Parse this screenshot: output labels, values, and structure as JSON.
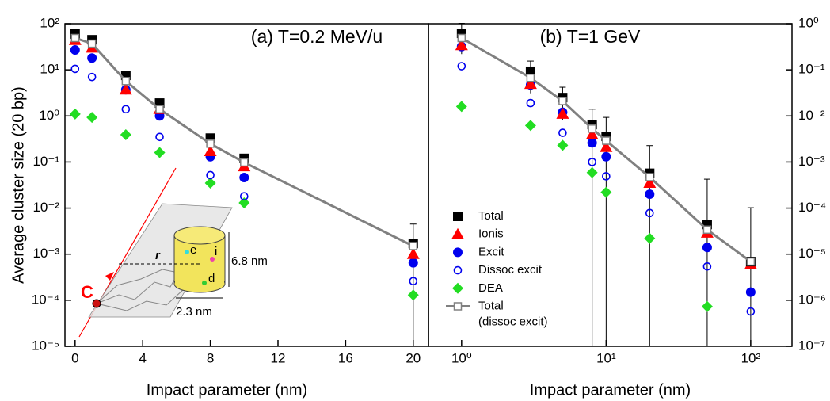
{
  "chart_data": [
    {
      "type": "scatter",
      "title": "(a) T=0.2 MeV/u",
      "xlabel": "Impact parameter (nm)",
      "ylabel": "Average cluster size (20 bp)",
      "xscale": "linear",
      "yscale": "log",
      "y_axis_side": "left",
      "xlim": [
        -0.6,
        20.9
      ],
      "ylim": [
        1e-05,
        100
      ],
      "xticks": [
        0,
        4,
        8,
        12,
        16,
        20
      ],
      "yticks": [
        {
          "value": 1e-05,
          "label": "10⁻⁵"
        },
        {
          "value": 0.0001,
          "label": "10⁻⁴"
        },
        {
          "value": 0.001,
          "label": "10⁻³"
        },
        {
          "value": 0.01,
          "label": "10⁻²"
        },
        {
          "value": 0.1,
          "label": "10⁻¹"
        },
        {
          "value": 1,
          "label": "10⁰"
        },
        {
          "value": 10,
          "label": "10¹"
        },
        {
          "value": 100,
          "label": "10²"
        }
      ],
      "x": [
        0,
        1,
        3,
        5,
        8,
        10,
        20
      ],
      "series": [
        {
          "color": "#000000",
          "marker": "square",
          "values": [
            60,
            45,
            7.6,
            1.9,
            0.33,
            0.12,
            0.0017
          ],
          "errors": [
            null,
            null,
            null,
            null,
            null,
            null,
            0.0028
          ]
        },
        {
          "color": "#ff0000",
          "marker": "triangle",
          "values": [
            44,
            30,
            3.7,
            1.4,
            0.17,
            0.08,
            0.001
          ]
        },
        {
          "color": "#0000ee",
          "marker": "circle",
          "values": [
            27,
            18,
            3.7,
            1.0,
            0.13,
            0.046,
            0.00065
          ]
        },
        {
          "color": "#0000ee",
          "marker": "open-circle",
          "values": [
            10.5,
            7,
            1.4,
            0.35,
            0.052,
            0.018,
            0.00026
          ]
        },
        {
          "color": "#22dd22",
          "marker": "diamond",
          "values": [
            1.1,
            0.93,
            0.39,
            0.16,
            0.035,
            0.013,
            0.00013
          ]
        },
        {
          "color": "#808080",
          "marker": "line-open-square",
          "values": [
            49,
            37,
            5.7,
            1.4,
            0.25,
            0.098,
            0.0015
          ]
        }
      ],
      "annotations": [
        "r",
        "e",
        "i",
        "d",
        "6.8 nm",
        "2.3 nm",
        "C"
      ]
    },
    {
      "type": "scatter",
      "title": "(b) T=1 GeV",
      "xlabel": "Impact parameter (nm)",
      "xscale": "log",
      "yscale": "log",
      "y_axis_side": "right",
      "legend": "lower left",
      "xlim": [
        0.59,
        193
      ],
      "ylim": [
        1e-07,
        1
      ],
      "xticks": [
        {
          "value": 1,
          "label": "10⁰"
        },
        {
          "value": 10,
          "label": "10¹"
        },
        {
          "value": 100,
          "label": "10²"
        }
      ],
      "yticks": [
        {
          "value": 1e-07,
          "label": "10⁻⁷"
        },
        {
          "value": 1e-06,
          "label": "10⁻⁶"
        },
        {
          "value": 1e-05,
          "label": "10⁻⁵"
        },
        {
          "value": 0.0001,
          "label": "10⁻⁴"
        },
        {
          "value": 0.001,
          "label": "10⁻³"
        },
        {
          "value": 0.01,
          "label": "10⁻²"
        },
        {
          "value": 0.1,
          "label": "10⁻¹"
        },
        {
          "value": 1,
          "label": "10⁰"
        }
      ],
      "x": [
        1,
        3,
        5,
        8,
        10,
        20,
        50,
        100
      ],
      "series": [
        {
          "name": "Total",
          "color": "#000000",
          "marker": "square",
          "values": [
            0.62,
            0.093,
            0.025,
            0.0065,
            0.0036,
            0.00057,
            4.4e-05,
            6.9e-06
          ],
          "errors": [
            0.4,
            0.062,
            0.017,
            0.0075,
            0.0057,
            0.0017,
            0.00038,
            9.5e-05
          ]
        },
        {
          "name": "Ionis",
          "color": "#ff0000",
          "marker": "triangle",
          "values": [
            0.34,
            0.049,
            0.011,
            0.0039,
            0.0021,
            0.00035,
            2.9e-05,
            6e-06
          ]
        },
        {
          "name": "Excit",
          "color": "#0000ee",
          "marker": "circle",
          "values": [
            0.32,
            0.047,
            0.012,
            0.0026,
            0.0013,
            0.0002,
            1.4e-05,
            1.5e-06
          ]
        },
        {
          "name": "Dissoc excit",
          "color": "#0000ee",
          "marker": "open-circle",
          "values": [
            0.12,
            0.019,
            0.0043,
            0.001,
            0.00049,
            7.8e-05,
            5.4e-06,
            5.7e-07
          ]
        },
        {
          "name": "DEA",
          "color": "#22dd22",
          "marker": "diamond",
          "values": [
            0.016,
            0.0062,
            0.0023,
            0.00059,
            0.00022,
            2.2e-05,
            7.3e-07,
            null
          ]
        },
        {
          "name": "Total (dissoc excit)",
          "color": "#808080",
          "marker": "line-open-square",
          "values": [
            0.49,
            0.067,
            0.021,
            0.0053,
            0.0029,
            0.00047,
            3.4e-05,
            6.9e-06
          ]
        }
      ]
    }
  ]
}
